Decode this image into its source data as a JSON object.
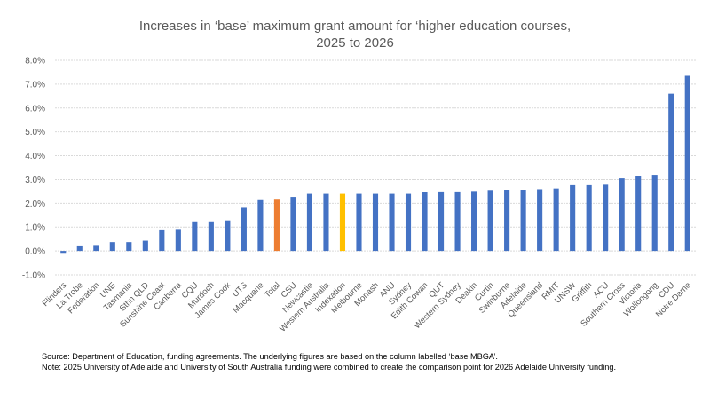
{
  "chart_data": {
    "type": "bar",
    "title_lines": [
      "Increases in ‘base’ maximum grant amount for ‘higher education courses,",
      "2025 to 2026"
    ],
    "title": "Increases in ‘base’ maximum grant amount for ‘higher education courses, 2025 to 2026",
    "xlabel": "",
    "ylabel": "",
    "ylim": [
      -1.0,
      8.0
    ],
    "yticks": [
      -1.0,
      0.0,
      1.0,
      2.0,
      3.0,
      4.0,
      5.0,
      6.0,
      7.0,
      8.0
    ],
    "ytick_labels": [
      "-1.0%",
      "0.0%",
      "1.0%",
      "2.0%",
      "3.0%",
      "4.0%",
      "5.0%",
      "6.0%",
      "7.0%",
      "8.0%"
    ],
    "grid": true,
    "legend": "none",
    "units": "percent",
    "categories": [
      "Flinders",
      "La Trobe",
      "Federation",
      "UNE",
      "Tasmania",
      "Sthn QLD",
      "Sunshine Coast",
      "Canberra",
      "CQU",
      "Murdoch",
      "James Cook",
      "UTS",
      "Macquarie",
      "Total",
      "CSU",
      "Newcastle",
      "Western Australia",
      "Indexation",
      "Melbourne",
      "Monash",
      "ANU",
      "Sydney",
      "Edith Cowan",
      "QUT",
      "Western Sydney",
      "Deakin",
      "Curtin",
      "Swinburne",
      "Adelaide",
      "Queensland",
      "RMIT",
      "UNSW",
      "Griffith",
      "ACU",
      "Southern Cross",
      "Victoria",
      "Wollongong",
      "CDU",
      "Notre Dame"
    ],
    "values": [
      -0.08,
      0.23,
      0.25,
      0.37,
      0.37,
      0.43,
      0.9,
      0.92,
      1.24,
      1.24,
      1.28,
      1.81,
      2.17,
      2.19,
      2.27,
      2.4,
      2.4,
      2.4,
      2.4,
      2.4,
      2.4,
      2.4,
      2.46,
      2.5,
      2.5,
      2.52,
      2.56,
      2.57,
      2.57,
      2.59,
      2.62,
      2.76,
      2.76,
      2.78,
      3.05,
      3.13,
      3.2,
      6.6,
      7.35
    ],
    "highlight": {
      "Total": "orange",
      "Indexation": "gold"
    },
    "colors": {
      "default": "#4472C4",
      "orange": "#ED7D31",
      "gold": "#FFC000",
      "grid": "#D9D9D9",
      "axis_text": "#595959"
    }
  },
  "notes": {
    "source": "Source: Department of Education, funding agreements. The underlying figures are based on the column labelled ‘base MBGA’.",
    "comparison": "Note: 2025 University of Adelaide and University of South Australia funding were combined to create the comparison point for 2026 Adelaide University funding."
  }
}
